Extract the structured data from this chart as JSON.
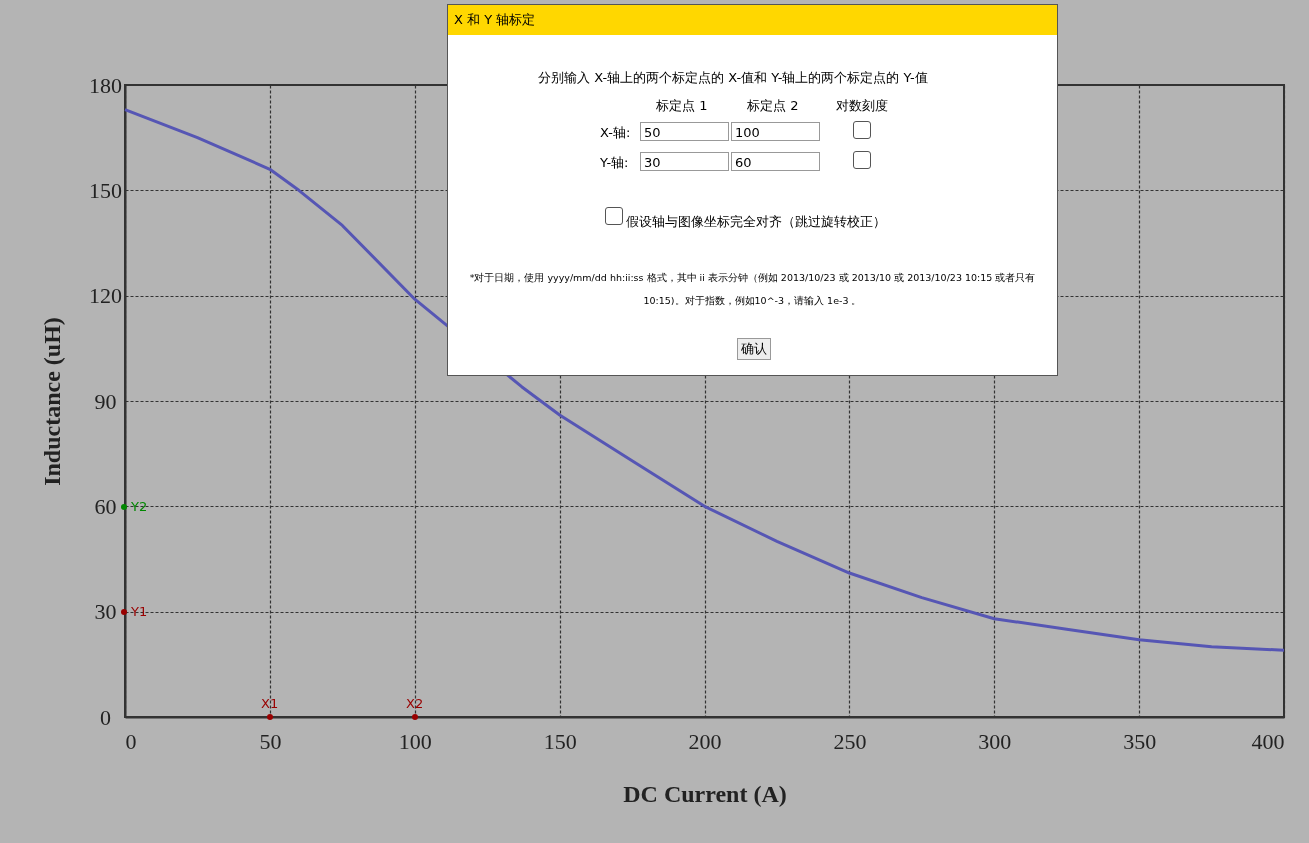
{
  "chart_data": [
    {
      "type": "line",
      "xlabel": "DC Current (A)",
      "ylabel": "Inductance (uH)",
      "x": [
        0,
        25,
        50,
        60,
        75,
        100,
        137,
        150,
        175,
        200,
        225,
        250,
        275,
        300,
        325,
        350,
        375,
        400
      ],
      "series": [
        {
          "color": "#5656b4",
          "values": [
            173,
            165,
            156,
            150,
            140,
            119,
            94,
            86,
            73,
            60,
            50,
            41,
            34,
            28,
            25,
            22,
            20,
            19
          ]
        }
      ],
      "xlim": [
        0,
        400
      ],
      "xticks": [
        0,
        50,
        100,
        150,
        200,
        250,
        300,
        350,
        400
      ],
      "ylim": [
        0,
        180
      ],
      "yticks": [
        0,
        30,
        60,
        90,
        120,
        150,
        180
      ],
      "grid": true,
      "marker": "none",
      "line_style": "solid",
      "annotations": [
        "X1",
        "X2",
        "Y1",
        "Y2"
      ]
    },
    {
      "type": "other",
      "title": "X 和 Y 轴标定",
      "annotations": [
        "分别输入 X-轴上的两个标定点的 X-值和 Y-轴上的两个标定点的 Y-值",
        "标定点 1",
        "标定点 2",
        "对数刻度",
        "X-轴:",
        "50",
        "100",
        "Y-轴:",
        "30",
        "60",
        "假设轴与图像坐标完全对齐（跳过旋转校正）",
        "*对于日期，使用 yyyy/mm/dd hh:ii:ss 格式，其中 ii 表示分钟（例如 2013/10/23 或 2013/10 或 2013/10/23 10:15 或者只有 10:15)。对于指数，例如10^-3，请输入 1e-3 。",
        "确认"
      ]
    }
  ]
}
